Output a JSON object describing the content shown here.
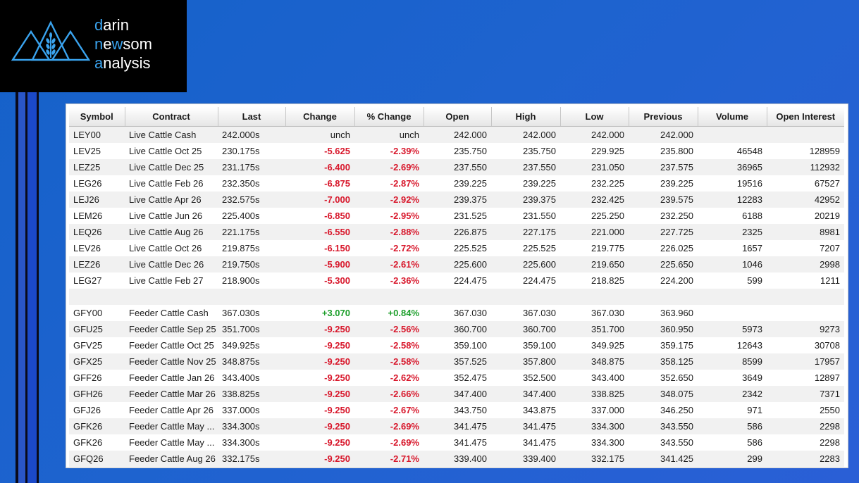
{
  "logo": {
    "line1": {
      "initial": "d",
      "rest": "arin"
    },
    "line2": {
      "initial": "n",
      "rest_a": "e",
      "hl2": "w",
      "rest_b": "som"
    },
    "line3": {
      "initial": "a",
      "rest": "nalysis"
    },
    "accent": "#3aa3ee"
  },
  "table": {
    "headers": [
      "Symbol",
      "Contract",
      "Last",
      "Change",
      "% Change",
      "Open",
      "High",
      "Low",
      "Previous",
      "Volume",
      "Open Interest"
    ],
    "rows": [
      [
        "LEY00",
        "Live Cattle Cash",
        "242.000s",
        "unch",
        "unch",
        "242.000",
        "242.000",
        "242.000",
        "242.000",
        "",
        ""
      ],
      [
        "LEV25",
        "Live Cattle Oct 25",
        "230.175s",
        "-5.625",
        "-2.39%",
        "235.750",
        "235.750",
        "229.925",
        "235.800",
        "46548",
        "128959"
      ],
      [
        "LEZ25",
        "Live Cattle Dec 25",
        "231.175s",
        "-6.400",
        "-2.69%",
        "237.550",
        "237.550",
        "231.050",
        "237.575",
        "36965",
        "112932"
      ],
      [
        "LEG26",
        "Live Cattle Feb 26",
        "232.350s",
        "-6.875",
        "-2.87%",
        "239.225",
        "239.225",
        "232.225",
        "239.225",
        "19516",
        "67527"
      ],
      [
        "LEJ26",
        "Live Cattle Apr 26",
        "232.575s",
        "-7.000",
        "-2.92%",
        "239.375",
        "239.375",
        "232.425",
        "239.575",
        "12283",
        "42952"
      ],
      [
        "LEM26",
        "Live Cattle Jun 26",
        "225.400s",
        "-6.850",
        "-2.95%",
        "231.525",
        "231.550",
        "225.250",
        "232.250",
        "6188",
        "20219"
      ],
      [
        "LEQ26",
        "Live Cattle Aug 26",
        "221.175s",
        "-6.550",
        "-2.88%",
        "226.875",
        "227.175",
        "221.000",
        "227.725",
        "2325",
        "8981"
      ],
      [
        "LEV26",
        "Live Cattle Oct 26",
        "219.875s",
        "-6.150",
        "-2.72%",
        "225.525",
        "225.525",
        "219.775",
        "226.025",
        "1657",
        "7207"
      ],
      [
        "LEZ26",
        "Live Cattle Dec 26",
        "219.750s",
        "-5.900",
        "-2.61%",
        "225.600",
        "225.600",
        "219.650",
        "225.650",
        "1046",
        "2998"
      ],
      [
        "LEG27",
        "Live Cattle Feb 27",
        "218.900s",
        "-5.300",
        "-2.36%",
        "224.475",
        "224.475",
        "218.825",
        "224.200",
        "599",
        "1211"
      ],
      [
        "",
        "",
        "",
        "",
        "",
        "",
        "",
        "",
        "",
        "",
        ""
      ],
      [
        "GFY00",
        "Feeder Cattle Cash",
        "367.030s",
        "+3.070",
        "+0.84%",
        "367.030",
        "367.030",
        "367.030",
        "363.960",
        "",
        ""
      ],
      [
        "GFU25",
        "Feeder Cattle Sep 25",
        "351.700s",
        "-9.250",
        "-2.56%",
        "360.700",
        "360.700",
        "351.700",
        "360.950",
        "5973",
        "9273"
      ],
      [
        "GFV25",
        "Feeder Cattle Oct 25",
        "349.925s",
        "-9.250",
        "-2.58%",
        "359.100",
        "359.100",
        "349.925",
        "359.175",
        "12643",
        "30708"
      ],
      [
        "GFX25",
        "Feeder Cattle Nov 25",
        "348.875s",
        "-9.250",
        "-2.58%",
        "357.525",
        "357.800",
        "348.875",
        "358.125",
        "8599",
        "17957"
      ],
      [
        "GFF26",
        "Feeder Cattle Jan 26",
        "343.400s",
        "-9.250",
        "-2.62%",
        "352.475",
        "352.500",
        "343.400",
        "352.650",
        "3649",
        "12897"
      ],
      [
        "GFH26",
        "Feeder Cattle Mar 26",
        "338.825s",
        "-9.250",
        "-2.66%",
        "347.400",
        "347.400",
        "338.825",
        "348.075",
        "2342",
        "7371"
      ],
      [
        "GFJ26",
        "Feeder Cattle Apr 26",
        "337.000s",
        "-9.250",
        "-2.67%",
        "343.750",
        "343.875",
        "337.000",
        "346.250",
        "971",
        "2550"
      ],
      [
        "GFK26",
        "Feeder Cattle May ...",
        "334.300s",
        "-9.250",
        "-2.69%",
        "341.475",
        "341.475",
        "334.300",
        "343.550",
        "586",
        "2298"
      ],
      [
        "GFK26",
        "Feeder Cattle May ...",
        "334.300s",
        "-9.250",
        "-2.69%",
        "341.475",
        "341.475",
        "334.300",
        "343.550",
        "586",
        "2298"
      ],
      [
        "GFQ26",
        "Feeder Cattle Aug 26",
        "332.175s",
        "-9.250",
        "-2.71%",
        "339.400",
        "339.400",
        "332.175",
        "341.425",
        "299",
        "2283"
      ]
    ]
  },
  "colors": {
    "negative": "#d8172b",
    "positive": "#1c9e2a",
    "background": "#1e63cf"
  }
}
